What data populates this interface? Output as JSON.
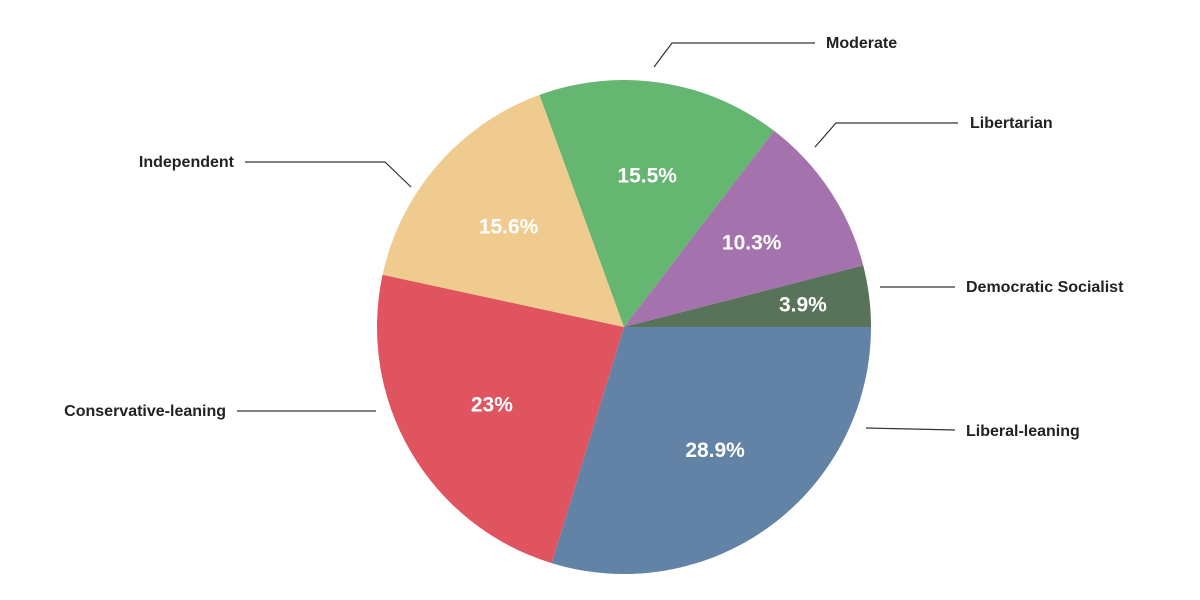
{
  "chart_data": {
    "type": "pie",
    "title": "",
    "slices": [
      {
        "label": "Liberal-leaning",
        "value": 28.9,
        "display": "28.9%",
        "color": "#6383a6"
      },
      {
        "label": "Conservative-leaning",
        "value": 23,
        "display": "23%",
        "color": "#e0545f"
      },
      {
        "label": "Independent",
        "value": 15.6,
        "display": "15.6%",
        "color": "#efcb90"
      },
      {
        "label": "Moderate",
        "value": 15.5,
        "display": "15.5%",
        "color": "#64b670"
      },
      {
        "label": "Libertarian",
        "value": 10.3,
        "display": "10.3%",
        "color": "#a473ae"
      },
      {
        "label": "Democratic Socialist",
        "value": 3.9,
        "display": "3.9%",
        "color": "#58735a"
      }
    ],
    "start_angle_deg": 0,
    "direction": "clockwise"
  }
}
